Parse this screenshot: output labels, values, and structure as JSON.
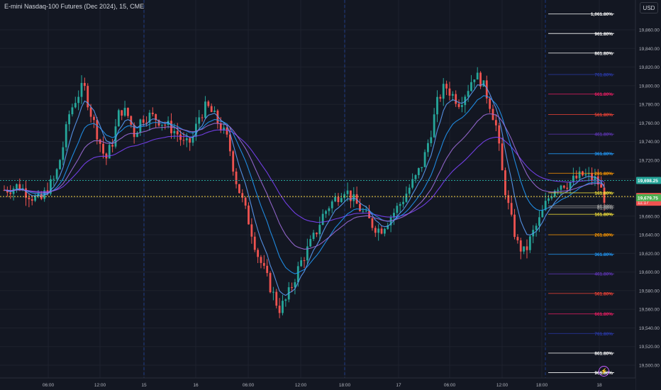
{
  "header": {
    "symbol_title": "E-mini Nasdaq-100 Futures (Dec 2024), 15, CME",
    "currency": "USD"
  },
  "colors": {
    "background": "#131722",
    "grid": "#1e222d",
    "up_candle": "#26a69a",
    "down_candle": "#ef5350",
    "ma_purple": "#7b42f6",
    "ma_blue": "#2196f3",
    "ma_light": "#5b9cf6",
    "ma_lilac": "#9c6bd8",
    "axis_text": "#b2b5be"
  },
  "chart_data": {
    "type": "candlestick",
    "y_axis": {
      "range": [
        19495,
        19880
      ],
      "ticks": [
        "19,860.00",
        "19,840.00",
        "19,820.00",
        "19,800.00",
        "19,780.00",
        "19,760.00",
        "19,740.00",
        "19,720.00",
        "19,700.00",
        "19,680.00",
        "19,660.00",
        "19,640.00",
        "19,620.00",
        "19,600.00",
        "19,580.00",
        "19,560.00",
        "19,540.00",
        "19,520.00",
        "19,500.00"
      ]
    },
    "x_axis": {
      "ticks": [
        "06:00",
        "12:00",
        "15",
        "16",
        "06:00",
        "12:00",
        "18:00",
        "17",
        "06:00",
        "12:00",
        "18:00",
        "18"
      ],
      "session_separators": [
        "15",
        "16",
        "18:00 (16)",
        "18:00 (17)"
      ]
    },
    "price_path": [
      19688,
      19690,
      19693,
      19686,
      19680,
      19676,
      19690,
      19700,
      19730,
      19770,
      19788,
      19800,
      19770,
      19745,
      19720,
      19740,
      19775,
      19770,
      19748,
      19765,
      19768,
      19765,
      19760,
      19755,
      19748,
      19735,
      19742,
      19768,
      19778,
      19768,
      19755,
      19740,
      19700,
      19675,
      19650,
      19620,
      19600,
      19580,
      19560,
      19570,
      19590,
      19610,
      19625,
      19640,
      19660,
      19672,
      19680,
      19690,
      19680,
      19670,
      19660,
      19650,
      19645,
      19655,
      19665,
      19676,
      19690,
      19702,
      19720,
      19750,
      19785,
      19800,
      19790,
      19782,
      19795,
      19812,
      19805,
      19785,
      19758,
      19700,
      19660,
      19630,
      19620,
      19640,
      19655,
      19675,
      19690,
      19695,
      19695,
      19700,
      19704,
      19702,
      19698,
      19680
    ],
    "moving_averages": [
      {
        "color": "ma_purple",
        "period": 200
      },
      {
        "color": "ma_blue",
        "period": 50
      },
      {
        "color": "ma_light",
        "period": 20
      },
      {
        "color": "ma_lilac",
        "period": 100
      }
    ],
    "horizontal_levels": [
      {
        "label": "19,698.25",
        "value": 19698.25,
        "style": "dotted",
        "color": "#26a69a",
        "badge": "19,698.25"
      },
      {
        "label": "19,681.00",
        "value": 19681.0,
        "style": "dotted",
        "color": "#f7d54a",
        "badge": "19,681.00"
      },
      {
        "label": "19,679.75",
        "value": 19679.75,
        "style": "none",
        "color": "#26a69a",
        "badge": "19,679.75"
      }
    ],
    "price_badges": [
      {
        "text": "19,698.25",
        "bg": "#26a69a",
        "fg": "#ffffff",
        "value": 19698.25
      },
      {
        "text": "19,681.00",
        "sub": "11:17",
        "bg": "#ef5350",
        "fg": "#ffffff",
        "value": 19681.0
      },
      {
        "text": "19,679.75",
        "bg": "#4caf50",
        "fg": "#ffffff",
        "value": 19679.75
      }
    ],
    "fib_levels": [
      {
        "label": "1,061.80%",
        "color": "#ffffff",
        "value": 19877
      },
      {
        "label": "961.80%",
        "color": "#ffffff",
        "value": 19856
      },
      {
        "label": "861.80%",
        "color": "#ffffff",
        "value": 19835
      },
      {
        "label": "761.80%",
        "color": "#2a3aa8",
        "value": 19812
      },
      {
        "label": "661.80%",
        "color": "#e91e63",
        "value": 19791
      },
      {
        "label": "561.80%",
        "color": "#f44336",
        "value": 19769
      },
      {
        "label": "461.80%",
        "color": "#5e35b1",
        "value": 19748
      },
      {
        "label": "361.80%",
        "color": "#2196f3",
        "value": 19727
      },
      {
        "label": "261.80%",
        "color": "#ff9800",
        "value": 19706
      },
      {
        "label": "161.80%",
        "color": "#ffeb3b",
        "value": 19685
      },
      {
        "label": "61.80%",
        "color": "#9e9e9e",
        "value": 19671
      },
      {
        "label": "61.80%",
        "color": "#9e9e9e",
        "value": 19669
      },
      {
        "label": "161.80%",
        "color": "#ffeb3b",
        "value": 19662
      },
      {
        "label": "261.80%",
        "color": "#ff9800",
        "value": 19640
      },
      {
        "label": "361.80%",
        "color": "#2196f3",
        "value": 19619
      },
      {
        "label": "461.80%",
        "color": "#5e35b1",
        "value": 19598
      },
      {
        "label": "561.80%",
        "color": "#f44336",
        "value": 19577
      },
      {
        "label": "661.80%",
        "color": "#e91e63",
        "value": 19555
      },
      {
        "label": "761.80%",
        "color": "#2a3aa8",
        "value": 19534
      },
      {
        "label": "861.80%",
        "color": "#ffffff",
        "value": 19513
      },
      {
        "label": "961.80%",
        "color": "#ffffff",
        "value": 19492
      },
      {
        "label": "1,061.80%",
        "color": "#ffffff",
        "value": 19470
      }
    ]
  }
}
